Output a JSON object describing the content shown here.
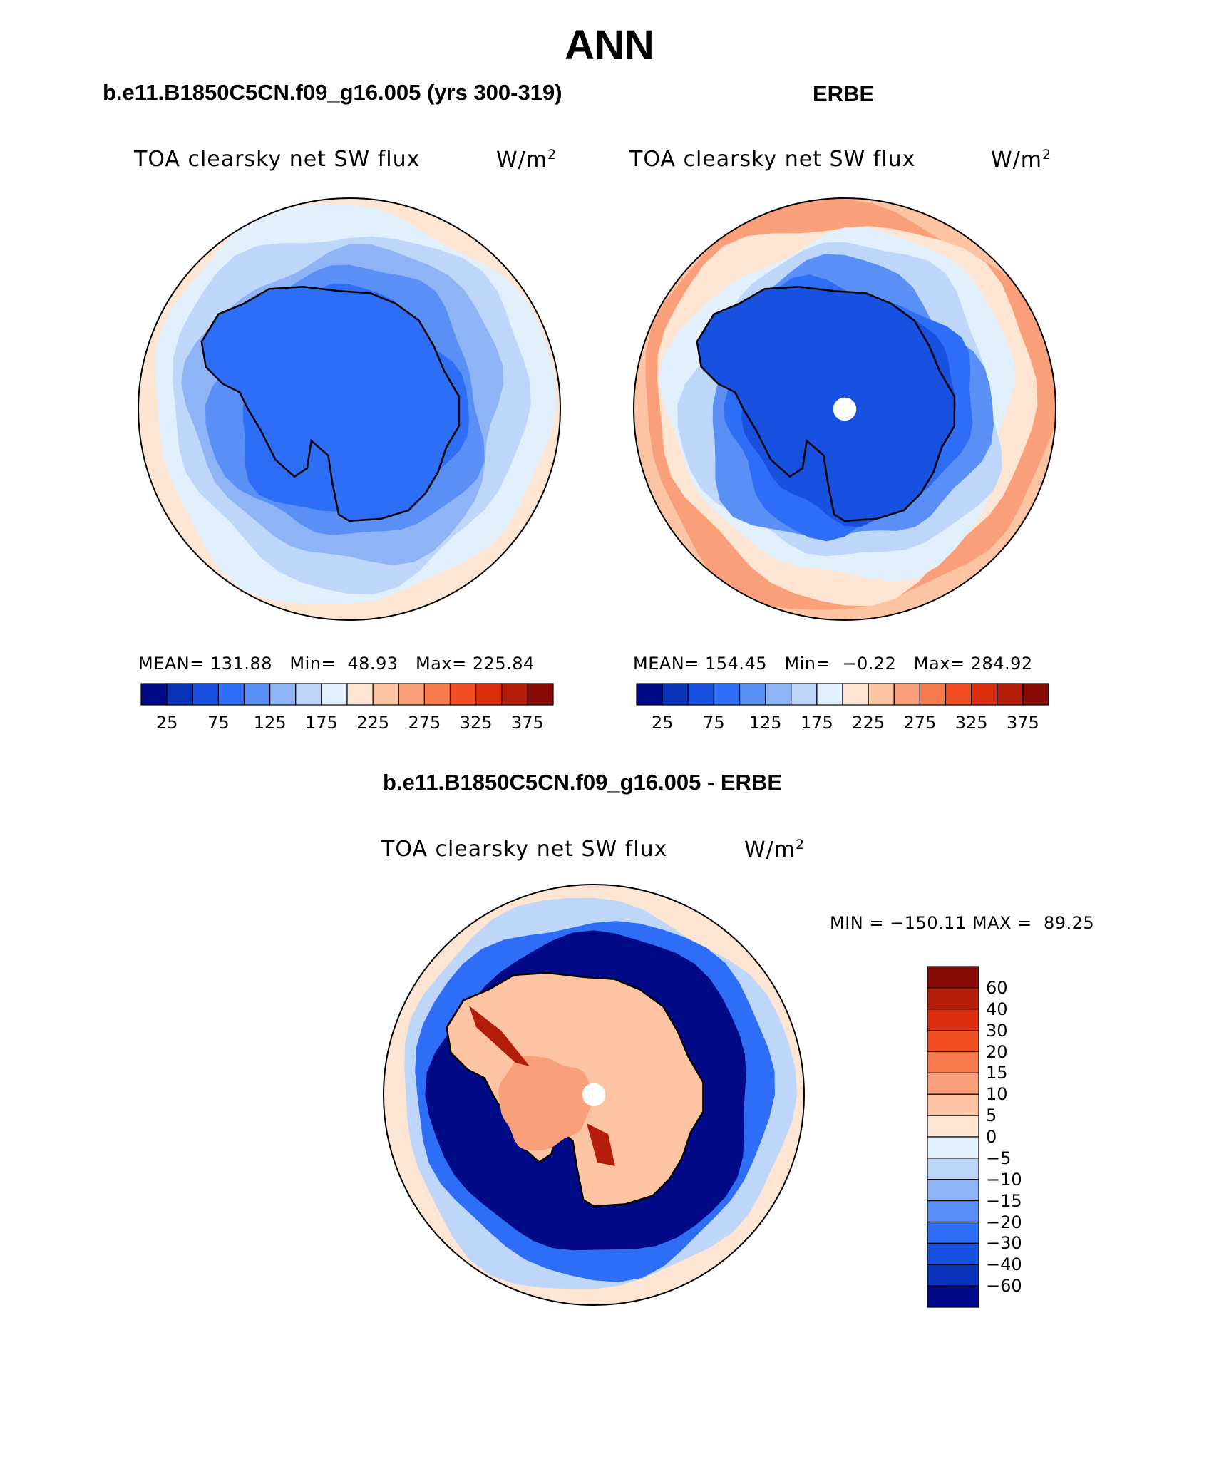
{
  "figure": {
    "title": "ANN",
    "model_case": "b.e11.B1850C5CN.f09_g16.005 (yrs 300-319)",
    "obs_case": "ERBE",
    "diff_case": "b.e11.B1850C5CN.f09_g16.005 - ERBE"
  },
  "colors": {
    "land_outline": "#000000",
    "pole_hole": "#ffffff",
    "abs_scale": [
      "#020a88",
      "#0832b8",
      "#1850e0",
      "#2e6ef6",
      "#5a90f6",
      "#8fb4f6",
      "#bdd6fa",
      "#e2effc",
      "#fde5d3",
      "#fcc4a2",
      "#f9a07a",
      "#f7794e",
      "#f24e24",
      "#de2e10",
      "#b41d0a",
      "#860a05"
    ],
    "diff_scale": [
      "#020a88",
      "#0832b8",
      "#1850e0",
      "#2e6ef6",
      "#5a90f6",
      "#8fb4f6",
      "#bdd6fa",
      "#e2effc",
      "#fde5d3",
      "#fcc4a2",
      "#f9a07a",
      "#f7794e",
      "#f24e24",
      "#de2e10",
      "#b41d0a",
      "#860a05"
    ]
  },
  "chart_data": [
    {
      "type": "heatmap",
      "projection": "south-polar-stereographic",
      "title": "TOA clearsky net SW flux",
      "units": "W/m",
      "units_sup": "2",
      "stats": {
        "mean_label": "MEAN=",
        "mean": "131.88",
        "min_label": "Min=",
        "min": "48.93",
        "max_label": "Max=",
        "max": "225.84"
      },
      "levels": [
        25,
        50,
        75,
        100,
        125,
        150,
        175,
        200,
        225,
        250,
        275,
        300,
        325,
        350,
        375
      ],
      "colorbar_labels": [
        "25",
        "75",
        "125",
        "175",
        "225",
        "275",
        "325",
        "375"
      ],
      "field_bands": [
        200,
        175,
        150,
        125,
        100,
        75
      ]
    },
    {
      "type": "heatmap",
      "projection": "south-polar-stereographic",
      "title": "TOA clearsky net SW flux",
      "units": "W/m",
      "units_sup": "2",
      "stats": {
        "mean_label": "MEAN=",
        "mean": "154.45",
        "min_label": "Min=",
        "min": "−0.22",
        "max_label": "Max=",
        "max": "284.92"
      },
      "levels": [
        25,
        50,
        75,
        100,
        125,
        150,
        175,
        200,
        225,
        250,
        275,
        300,
        325,
        350,
        375
      ],
      "colorbar_labels": [
        "25",
        "75",
        "125",
        "175",
        "225",
        "275",
        "325",
        "375"
      ],
      "field_bands": [
        225,
        250,
        200,
        175,
        150,
        100,
        75,
        50
      ]
    },
    {
      "type": "heatmap",
      "projection": "south-polar-stereographic",
      "title": "TOA clearsky net SW flux",
      "units": "W/m",
      "units_sup": "2",
      "stats": {
        "min_label": "MIN =",
        "min": "−150.11",
        "max_label": "MAX =",
        "max": "89.25"
      },
      "levels": [
        -60,
        -40,
        -30,
        -20,
        -15,
        -10,
        -5,
        0,
        5,
        10,
        15,
        20,
        30,
        40,
        60
      ],
      "colorbar_labels": [
        "60",
        "40",
        "30",
        "20",
        "15",
        "10",
        "5",
        "0",
        "−5",
        "−10",
        "−15",
        "−20",
        "−30",
        "−40",
        "−60"
      ],
      "field_bands": [
        2,
        -8,
        -30,
        -70,
        5,
        12,
        40
      ]
    }
  ]
}
